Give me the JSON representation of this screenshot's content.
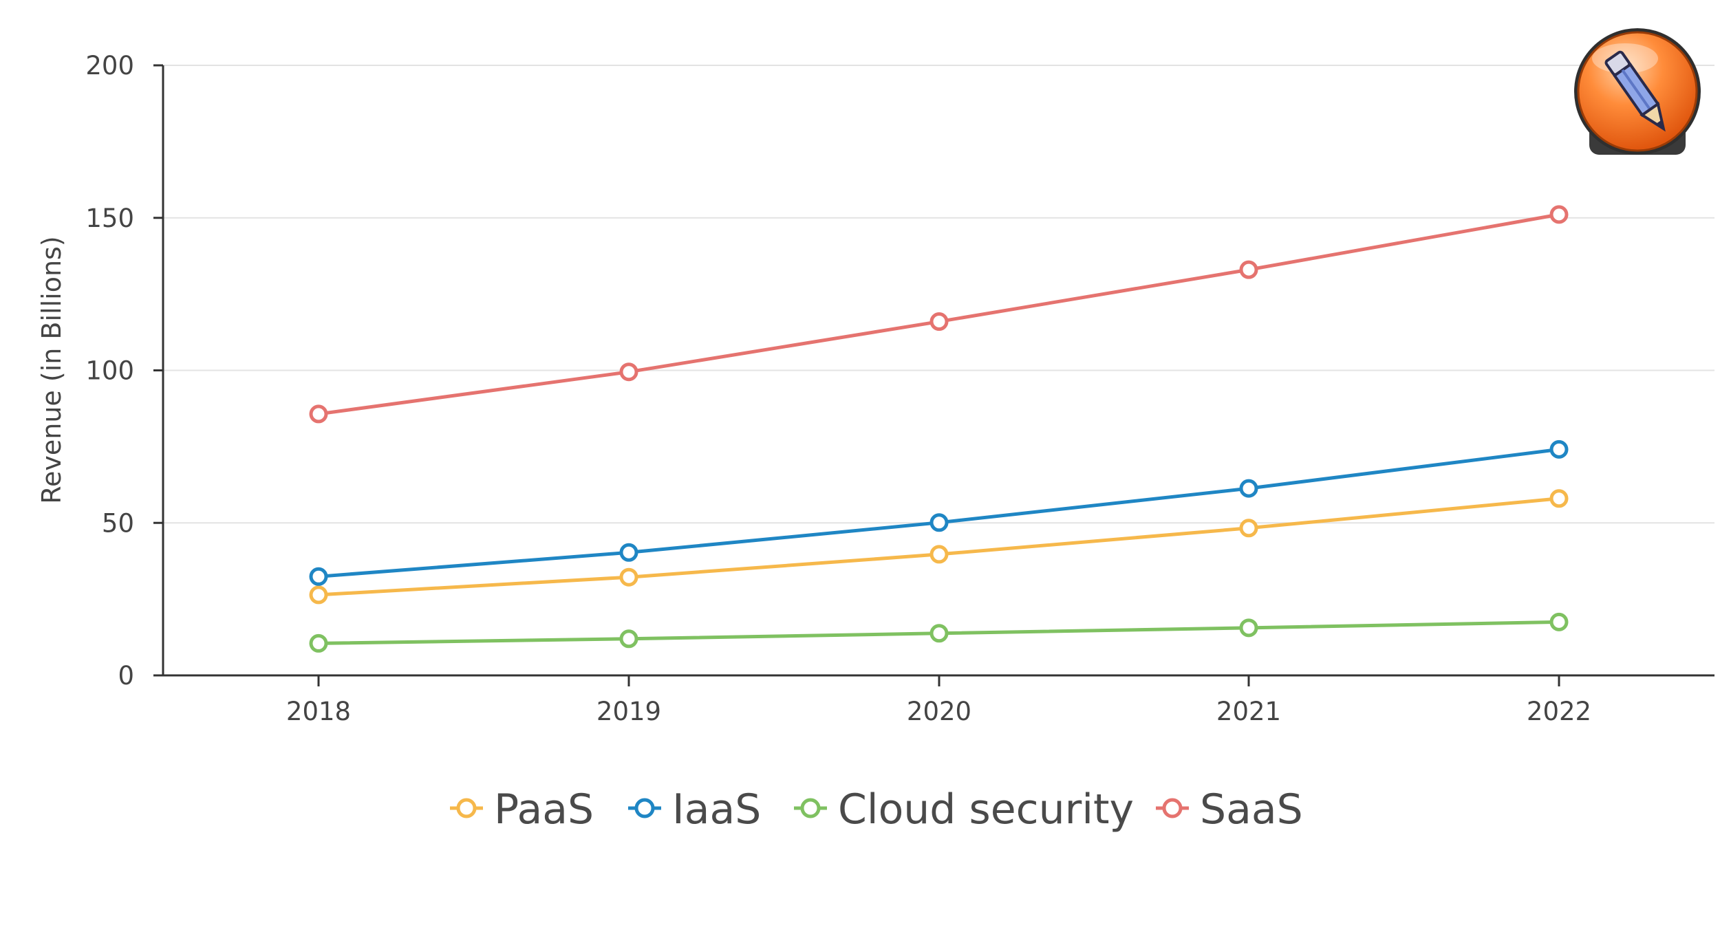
{
  "chart_data": {
    "type": "line",
    "title": "",
    "xlabel": "",
    "ylabel": "Revenue (in Billions)",
    "categories": [
      "2018",
      "2019",
      "2020",
      "2021",
      "2022"
    ],
    "ylim": [
      0,
      200
    ],
    "yticks": [
      0,
      50,
      100,
      150,
      200
    ],
    "grid": true,
    "legend_position": "bottom-center",
    "series": [
      {
        "name": "PaaS",
        "color": "#f6b84b",
        "values": [
          26.4,
          32.2,
          39.7,
          48.3,
          58.0
        ]
      },
      {
        "name": "IaaS",
        "color": "#1f86c4",
        "values": [
          32.4,
          40.3,
          50.1,
          61.3,
          74.1
        ]
      },
      {
        "name": "Cloud security",
        "color": "#7fc161",
        "values": [
          10.5,
          12.0,
          13.8,
          15.6,
          17.5
        ]
      },
      {
        "name": "SaaS",
        "color": "#e5736f",
        "values": [
          85.7,
          99.5,
          116.0,
          133.0,
          151.1
        ]
      }
    ]
  },
  "edit_badge": {
    "icon": "pencil-icon",
    "color": "#f26a1b"
  }
}
